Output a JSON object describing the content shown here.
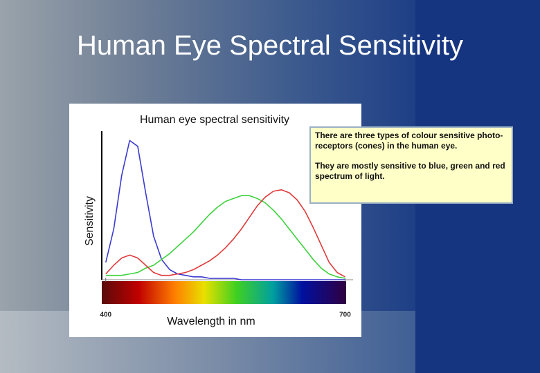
{
  "slide_title": "Human Eye Spectral Sensitivity",
  "note": [
    "There are three types of colour sensitive photo-receptors (cones) in the human eye.",
    "They are mostly sensitive to blue, green and red spectrum of light."
  ],
  "chart_data": {
    "type": "line",
    "title": "Human eye spectral sensitivity",
    "x_label": "Wavelength in nm",
    "y_label": "Sensitivity",
    "x": [
      400,
      410,
      420,
      430,
      440,
      450,
      460,
      470,
      480,
      490,
      500,
      510,
      520,
      530,
      540,
      550,
      560,
      570,
      580,
      590,
      600,
      610,
      620,
      630,
      640,
      650,
      660,
      670,
      680,
      690,
      700
    ],
    "xlim": [
      395,
      710
    ],
    "xticks": [
      400,
      700
    ],
    "ylim": [
      0,
      1
    ],
    "series": [
      {
        "color": "#3a3ad0",
        "values": [
          0.12,
          0.35,
          0.72,
          0.96,
          0.92,
          0.6,
          0.3,
          0.14,
          0.07,
          0.04,
          0.03,
          0.02,
          0.02,
          0.01,
          0.01,
          0.01,
          0.01,
          0,
          0,
          0,
          0,
          0,
          0,
          0,
          0,
          0,
          0,
          0,
          0,
          0,
          0
        ]
      },
      {
        "color": "#3cd23c",
        "values": [
          0.03,
          0.03,
          0.03,
          0.04,
          0.05,
          0.08,
          0.1,
          0.14,
          0.18,
          0.23,
          0.28,
          0.33,
          0.39,
          0.45,
          0.5,
          0.54,
          0.56,
          0.58,
          0.58,
          0.56,
          0.53,
          0.48,
          0.42,
          0.35,
          0.28,
          0.21,
          0.14,
          0.08,
          0.04,
          0.02,
          0.01
        ]
      },
      {
        "color": "#e03a3a",
        "values": [
          0.04,
          0.1,
          0.15,
          0.17,
          0.15,
          0.1,
          0.05,
          0.03,
          0.03,
          0.04,
          0.05,
          0.07,
          0.1,
          0.13,
          0.17,
          0.22,
          0.28,
          0.35,
          0.43,
          0.51,
          0.57,
          0.61,
          0.62,
          0.6,
          0.55,
          0.47,
          0.36,
          0.24,
          0.12,
          0.05,
          0.02
        ]
      }
    ]
  }
}
